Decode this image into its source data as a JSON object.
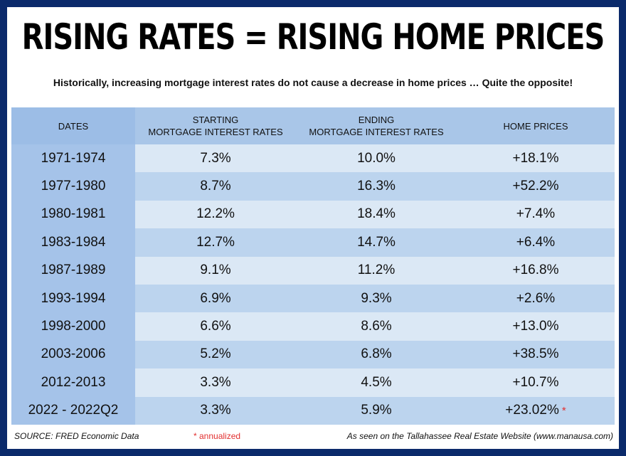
{
  "title": "RISING RATES = RISING HOME PRICES",
  "subtitle": "Historically, increasing mortgage interest rates do not cause a decrease in home prices … Quite the opposite!",
  "chart_data": {
    "type": "table",
    "columns": [
      {
        "top": "DATES",
        "bottom": ""
      },
      {
        "top": "STARTING",
        "bottom": "MORTGAGE INTEREST RATES"
      },
      {
        "top": "ENDING",
        "bottom": "MORTGAGE INTEREST RATES"
      },
      {
        "top": "HOME PRICES",
        "bottom": ""
      }
    ],
    "rows": [
      [
        "1971-1974",
        "7.3%",
        "10.0%",
        "+18.1%"
      ],
      [
        "1977-1980",
        "8.7%",
        "16.3%",
        "+52.2%"
      ],
      [
        "1980-1981",
        "12.2%",
        "18.4%",
        "+7.4%"
      ],
      [
        "1983-1984",
        "12.7%",
        "14.7%",
        "+6.4%"
      ],
      [
        "1987-1989",
        "9.1%",
        "11.2%",
        "+16.8%"
      ],
      [
        "1993-1994",
        "6.9%",
        "9.3%",
        "+2.6%"
      ],
      [
        "1998-2000",
        "6.6%",
        "8.6%",
        "+13.0%"
      ],
      [
        "2003-2006",
        "5.2%",
        "6.8%",
        "+38.5%"
      ],
      [
        "2012-2013",
        "3.3%",
        "4.5%",
        "+10.7%"
      ],
      [
        "2022 - 2022Q2",
        "3.3%",
        "5.9%",
        "+23.02%"
      ]
    ],
    "annotated_row": 9,
    "annotation_mark": "*"
  },
  "footer": {
    "source": "SOURCE: FRED Economic Data",
    "note": "* annualized",
    "site": "As seen on the Tallahassee Real Estate Website (www.manausa.com)"
  },
  "colors": {
    "border": "#0b2a6b",
    "header_bg": "#a9c6e8",
    "row_light": "#dbe8f5",
    "row_dark": "#bcd4ee",
    "date_col": "#a5c3e9",
    "annotation": "#e23030"
  }
}
